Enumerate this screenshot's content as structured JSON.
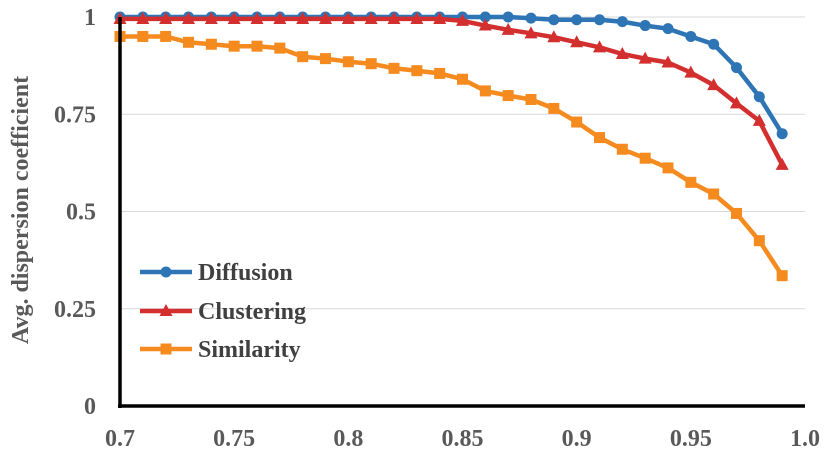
{
  "chart_data": {
    "type": "line",
    "title": "",
    "xlabel": "",
    "ylabel": "Avg. dispersion coefficient",
    "xlim": [
      0.7,
      1.0
    ],
    "ylim": [
      0,
      1
    ],
    "x_ticks": [
      "0.7",
      "0.75",
      "0.8",
      "0.85",
      "0.9",
      "0.95",
      "1.0"
    ],
    "y_ticks": [
      "0",
      "0.25",
      "0.5",
      "0.75",
      "1"
    ],
    "grid": "horizontal",
    "legend_position": "bottom-left",
    "x": [
      0.7,
      0.71,
      0.72,
      0.73,
      0.74,
      0.75,
      0.76,
      0.77,
      0.78,
      0.79,
      0.8,
      0.81,
      0.82,
      0.83,
      0.84,
      0.85,
      0.86,
      0.87,
      0.88,
      0.89,
      0.9,
      0.91,
      0.92,
      0.93,
      0.94,
      0.95,
      0.96,
      0.97,
      0.98,
      0.99
    ],
    "series": [
      {
        "name": "Diffusion",
        "color": "#2E75B6",
        "marker": "circle",
        "values": [
          1.0,
          1.0,
          1.0,
          1.0,
          1.0,
          1.0,
          1.0,
          1.0,
          1.0,
          1.0,
          1.0,
          1.0,
          1.0,
          1.0,
          1.0,
          1.0,
          1.0,
          1.0,
          0.997,
          0.993,
          0.993,
          0.993,
          0.988,
          0.978,
          0.97,
          0.95,
          0.93,
          0.87,
          0.795,
          0.7
        ]
      },
      {
        "name": "Clustering",
        "color": "#D32F2F",
        "marker": "triangle",
        "values": [
          0.995,
          0.995,
          0.995,
          0.995,
          0.995,
          0.995,
          0.995,
          0.995,
          0.995,
          0.995,
          0.995,
          0.995,
          0.995,
          0.995,
          0.995,
          0.99,
          0.978,
          0.967,
          0.958,
          0.948,
          0.935,
          0.922,
          0.905,
          0.893,
          0.883,
          0.857,
          0.825,
          0.778,
          0.733,
          0.62
        ]
      },
      {
        "name": "Similarity",
        "color": "#F58A1F",
        "marker": "square",
        "values": [
          0.95,
          0.95,
          0.95,
          0.935,
          0.93,
          0.925,
          0.925,
          0.92,
          0.898,
          0.893,
          0.885,
          0.88,
          0.868,
          0.862,
          0.855,
          0.84,
          0.81,
          0.798,
          0.788,
          0.765,
          0.73,
          0.69,
          0.66,
          0.637,
          0.612,
          0.575,
          0.545,
          0.495,
          0.425,
          0.335
        ]
      }
    ]
  }
}
